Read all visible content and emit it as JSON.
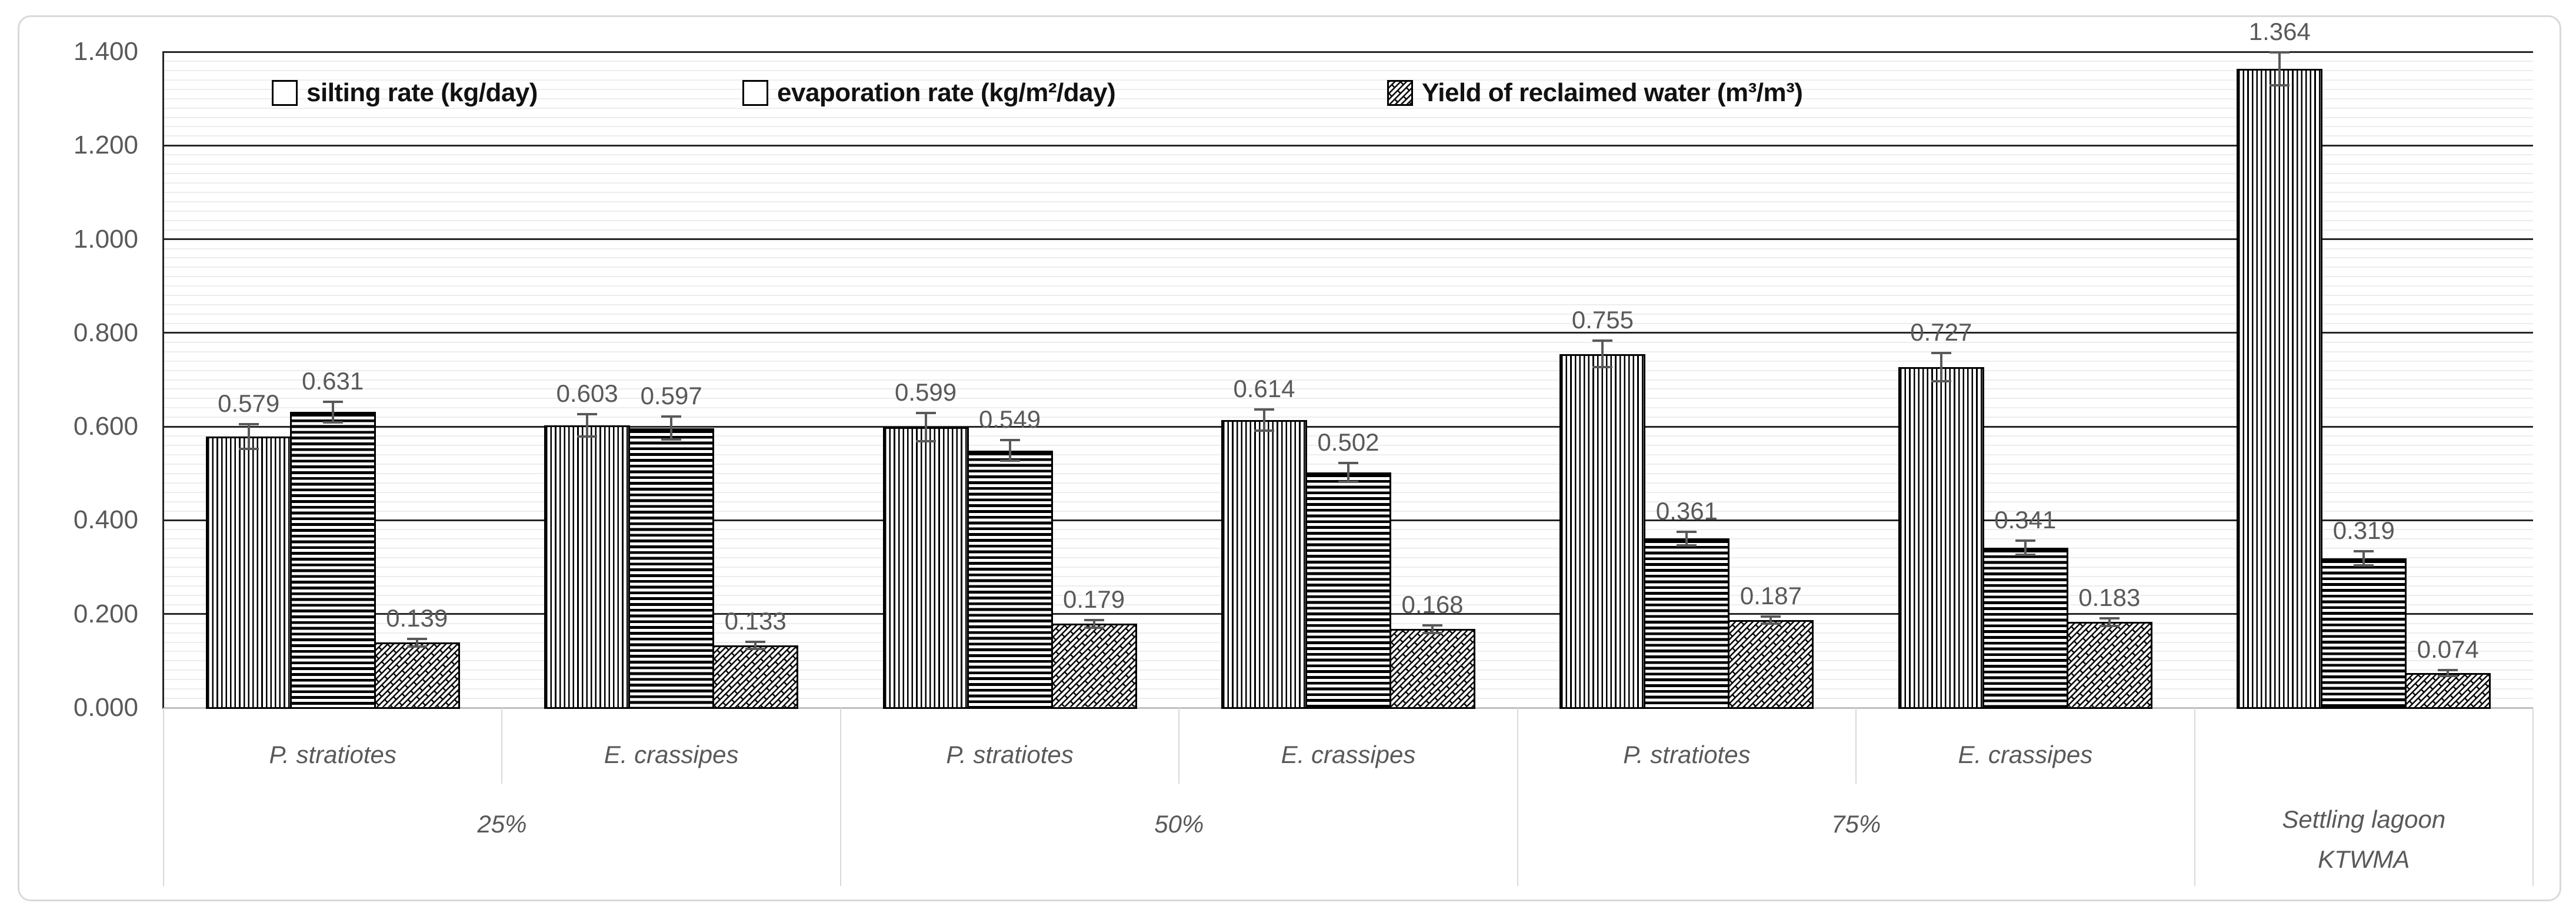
{
  "chart_data": {
    "type": "bar",
    "title": "",
    "y_axis": {
      "min": 0,
      "max": 1.4,
      "major_step": 0.2,
      "minor_step": 0.02,
      "tick_labels": [
        "0.000",
        "0.200",
        "0.400",
        "0.600",
        "0.800",
        "1.000",
        "1.200",
        "1.400"
      ],
      "grid": true
    },
    "legend_position": "top-inside",
    "series": [
      {
        "name": "silting rate (kg/day)",
        "pattern": "vertical-lines",
        "values": [
          0.579,
          0.603,
          0.599,
          0.614,
          0.755,
          0.727,
          1.364
        ],
        "errors": [
          0.026,
          0.024,
          0.03,
          0.022,
          0.028,
          0.03,
          0.035
        ]
      },
      {
        "name": "evaporation rate (kg/m²/day)",
        "pattern": "horizontal-lines",
        "values": [
          0.631,
          0.597,
          0.549,
          0.502,
          0.361,
          0.341,
          0.319
        ],
        "errors": [
          0.022,
          0.024,
          0.022,
          0.02,
          0.015,
          0.015,
          0.015
        ]
      },
      {
        "name": "Yield of reclaimed water (m³/m³)",
        "pattern": "diagonal-shingle",
        "values": [
          0.139,
          0.133,
          0.179,
          0.168,
          0.187,
          0.183,
          0.074
        ],
        "errors": [
          0.008,
          0.008,
          0.008,
          0.008,
          0.008,
          0.008,
          0.006
        ]
      }
    ],
    "categories": [
      "P. stratiotes",
      "E. crassipes",
      "P. stratiotes",
      "E. crassipes",
      "P. stratiotes",
      "E. crassipes",
      ""
    ],
    "category_groups": [
      {
        "label": "25%",
        "span": 2,
        "lines": [
          "25%"
        ]
      },
      {
        "label": "50%",
        "span": 2,
        "lines": [
          "50%"
        ]
      },
      {
        "label": "75%",
        "span": 2,
        "lines": [
          "75%"
        ]
      },
      {
        "label": "Settling lagoon KTWMA",
        "span": 1,
        "lines": [
          "Settling lagoon",
          "KTWMA"
        ]
      }
    ],
    "colors": {
      "bar_fill": "#ffffff",
      "bar_stroke": "#000000",
      "major_grid": "#262626",
      "minor_grid": "#ededed",
      "axis_line": "#bfbfbf",
      "y_axis_line": "#262626",
      "tick_text": "#595959",
      "data_label_text": "#595959",
      "category_text": "#595959",
      "legend_text": "#111111",
      "error_bar": "#595959",
      "chart_border": "#d9d9d9"
    }
  }
}
